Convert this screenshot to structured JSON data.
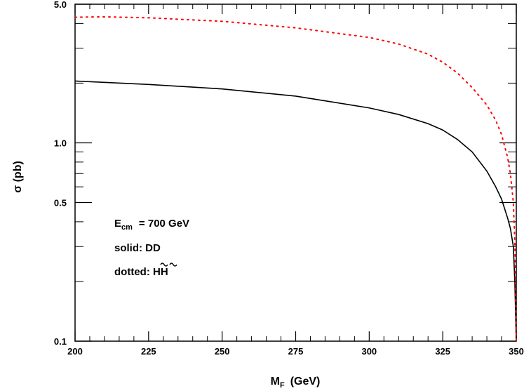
{
  "chart_data": {
    "type": "line",
    "xlabel": "M",
    "xlabel_sub": "F",
    "xlabel_unit": "(GeV)",
    "ylabel": "σ (pb)",
    "xlim": [
      200,
      350
    ],
    "ylim": [
      0.1,
      5.0
    ],
    "yscale": "log",
    "x_ticks": [
      200,
      225,
      250,
      275,
      300,
      325,
      350
    ],
    "x_tick_labels": [
      "200",
      "225",
      "250",
      "275",
      "300",
      "325",
      "350"
    ],
    "y_ticks": [
      0.1,
      0.5,
      1.0,
      5.0
    ],
    "y_tick_labels": [
      "0.1",
      "0.5",
      "1.0",
      "5.0"
    ],
    "grid": false,
    "annotations": {
      "ecm_label": "E",
      "ecm_sub": "cm",
      "ecm_value": "= 700 GeV",
      "solid_label": "solid: DD",
      "dotted_prefix": "dotted: ",
      "dotted_text": "HH"
    },
    "series": [
      {
        "style": "solid",
        "color": "#000000",
        "x": [
          200,
          225,
          250,
          275,
          300,
          310,
          320,
          325,
          330,
          335,
          340,
          343,
          345,
          347,
          348,
          349,
          349.5,
          350
        ],
        "values": [
          2.05,
          1.97,
          1.87,
          1.72,
          1.5,
          1.39,
          1.25,
          1.16,
          1.04,
          0.9,
          0.72,
          0.6,
          0.52,
          0.42,
          0.37,
          0.3,
          0.2,
          0.1
        ]
      },
      {
        "style": "dotted",
        "color": "#ff0000",
        "x": [
          200,
          210,
          225,
          250,
          275,
          300,
          310,
          320,
          325,
          330,
          335,
          340,
          343,
          345,
          347,
          348,
          349,
          349.5,
          350
        ],
        "values": [
          4.3,
          4.32,
          4.27,
          4.1,
          3.8,
          3.4,
          3.15,
          2.8,
          2.55,
          2.25,
          1.9,
          1.55,
          1.3,
          1.1,
          0.85,
          0.7,
          0.5,
          0.32,
          0.1
        ]
      }
    ]
  }
}
